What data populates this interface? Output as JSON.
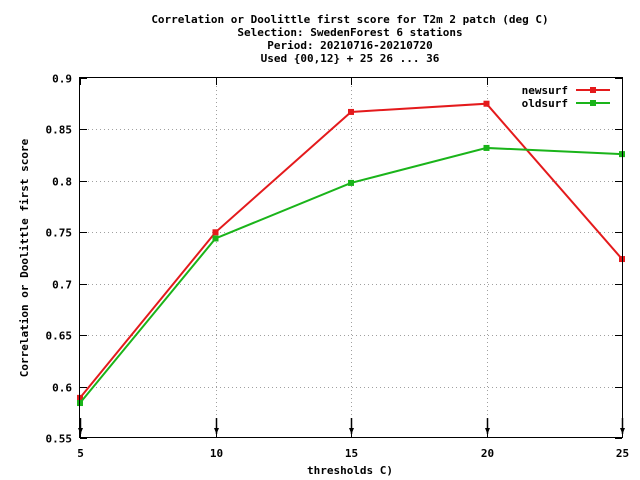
{
  "chart_data": {
    "type": "line",
    "title_lines": [
      "Correlation or Doolittle first score  for T2m 2 patch (deg C)",
      "Selection: SwedenForest      6 stations",
      "Period: 20210716-20210720",
      "Used {00,12} + 25 26 ... 36"
    ],
    "xlabel": "thresholds C)",
    "ylabel": "Correlation or Doolittle first score",
    "x": [
      5,
      10,
      15,
      20,
      25
    ],
    "xticks": [
      "5",
      "10",
      "15",
      "20",
      "25"
    ],
    "xlim": [
      5,
      25
    ],
    "ylim": [
      0.55,
      0.9
    ],
    "yticks": [
      0.55,
      0.6,
      0.65,
      0.7,
      0.75,
      0.8,
      0.85,
      0.9
    ],
    "ytick_labels": [
      "0.55",
      "0.6",
      "0.65",
      "0.7",
      "0.75",
      "0.8",
      "0.85",
      "0.9"
    ],
    "grid": true,
    "legend_position": "top-right",
    "series": [
      {
        "name": "newsurf",
        "color": "#e41a1c",
        "values": [
          0.589,
          0.75,
          0.867,
          0.875,
          0.724
        ]
      },
      {
        "name": "oldsurf",
        "color": "#1ab41a",
        "values": [
          0.584,
          0.744,
          0.798,
          0.832,
          0.826
        ]
      }
    ]
  }
}
